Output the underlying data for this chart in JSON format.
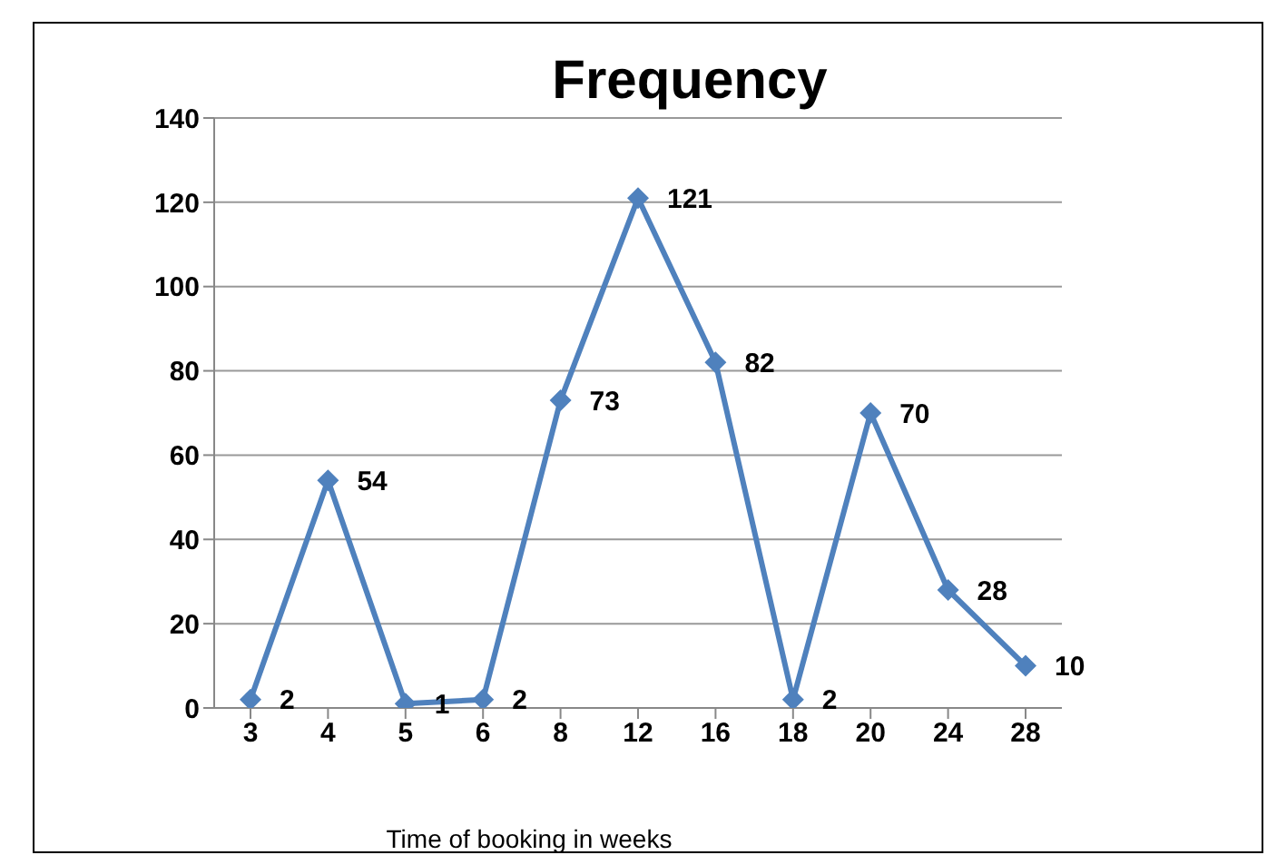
{
  "chart_data": {
    "type": "line",
    "title": "Frequency",
    "xlabel": "Time of booking in weeks",
    "categories": [
      "3",
      "4",
      "5",
      "6",
      "8",
      "12",
      "16",
      "18",
      "20",
      "24",
      "28"
    ],
    "series": [
      {
        "color": "#4f81bd",
        "values": [
          2,
          54,
          1,
          2,
          73,
          121,
          82,
          2,
          70,
          28,
          10
        ]
      }
    ],
    "ylim": [
      0,
      140
    ],
    "yticks": [
      0,
      20,
      40,
      60,
      80,
      100,
      120,
      140
    ],
    "grid": "y",
    "marker": "diamond",
    "line_style": "solid",
    "data_labels": true
  }
}
